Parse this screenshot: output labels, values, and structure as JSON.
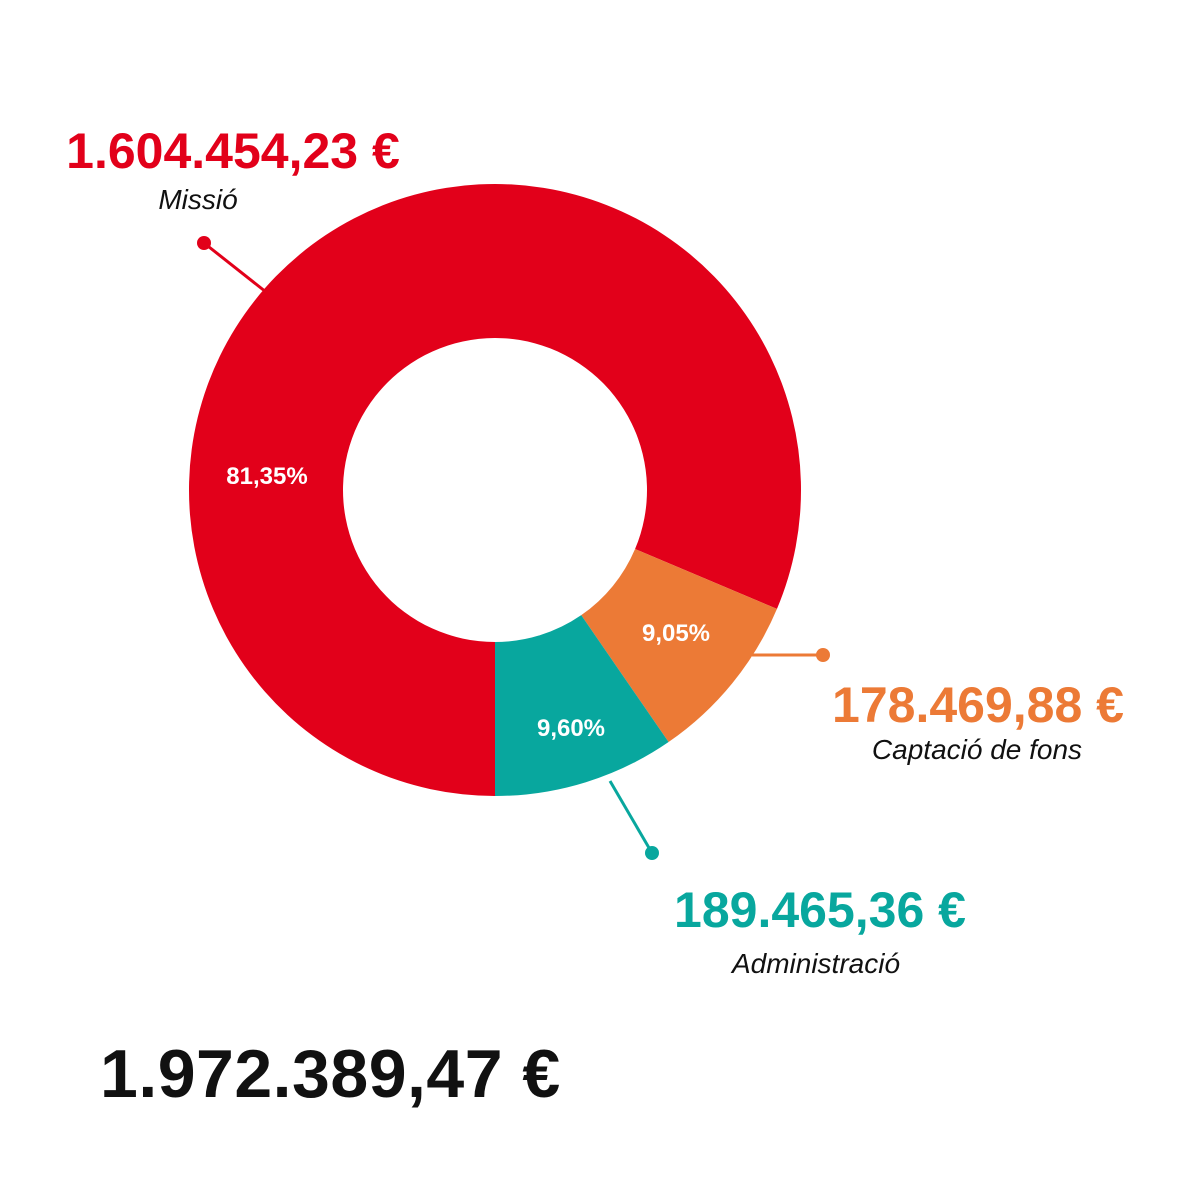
{
  "chart_data": {
    "type": "pie",
    "donut": true,
    "series": [
      {
        "name": "Missió",
        "amount_label": "1.604.454,23 €",
        "percent_label": "81,35%",
        "value": 81.35,
        "color": "#e2001a"
      },
      {
        "name": "Captació de fons",
        "amount_label": "178.469,88 €",
        "percent_label": "9,05%",
        "value": 9.05,
        "color": "#ec7a36"
      },
      {
        "name": "Administració",
        "amount_label": "189.465,36 €",
        "percent_label": "9,60%",
        "value": 9.6,
        "color": "#08a79e"
      }
    ],
    "total_label": "1.972.389,47 €"
  }
}
